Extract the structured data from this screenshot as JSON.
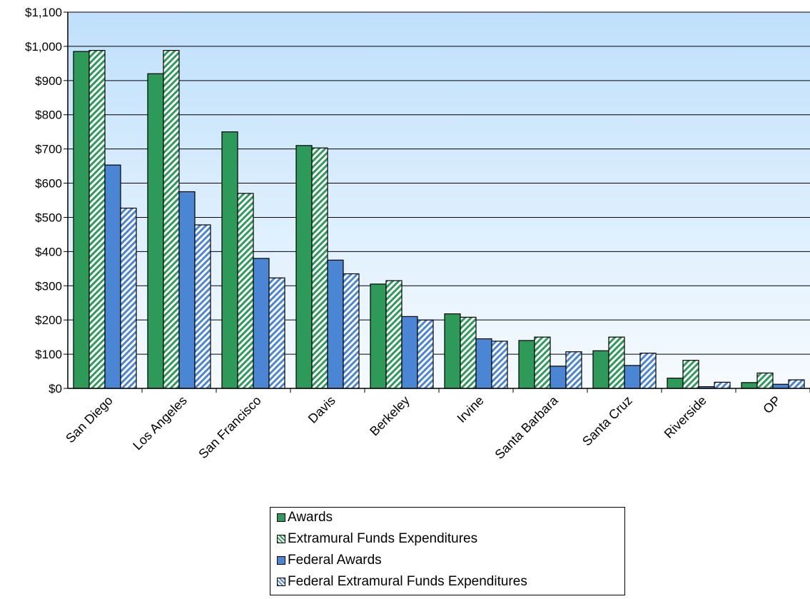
{
  "colors": {
    "plot_top": "#bfe0fb",
    "plot_bottom": "#f6fbff",
    "awards": "#2e9a5a",
    "extramural": "#2e9a5a",
    "federal_awards": "#4a86d4",
    "federal_extramural": "#4a86d4"
  },
  "chart_data": {
    "type": "bar",
    "title": "",
    "xlabel": "",
    "ylabel": "",
    "ylim": [
      0,
      1100
    ],
    "y_ticks": [
      "$0",
      "$100",
      "$200",
      "$300",
      "$400",
      "$500",
      "$600",
      "$700",
      "$800",
      "$900",
      "$1,000",
      "$1,100"
    ],
    "grid": true,
    "legend_position": "bottom",
    "categories": [
      "San Diego",
      "Los Angeles",
      "San Francisco",
      "Davis",
      "Berkeley",
      "Irvine",
      "Santa Barbara",
      "Santa Cruz",
      "Riverside",
      "OP"
    ],
    "series": [
      {
        "name": "Awards",
        "pattern": "solid",
        "values": [
          985,
          920,
          750,
          710,
          305,
          218,
          140,
          110,
          30,
          17
        ]
      },
      {
        "name": "Extramural Funds Expenditures",
        "pattern": "hatched",
        "values": [
          988,
          988,
          570,
          703,
          315,
          208,
          150,
          150,
          82,
          45
        ]
      },
      {
        "name": "Federal Awards",
        "pattern": "solid",
        "values": [
          653,
          575,
          380,
          375,
          210,
          145,
          65,
          67,
          5,
          12
        ]
      },
      {
        "name": "Federal Extramural Funds Expenditures",
        "pattern": "hatched",
        "values": [
          527,
          478,
          323,
          335,
          200,
          138,
          107,
          103,
          18,
          25
        ]
      }
    ]
  }
}
